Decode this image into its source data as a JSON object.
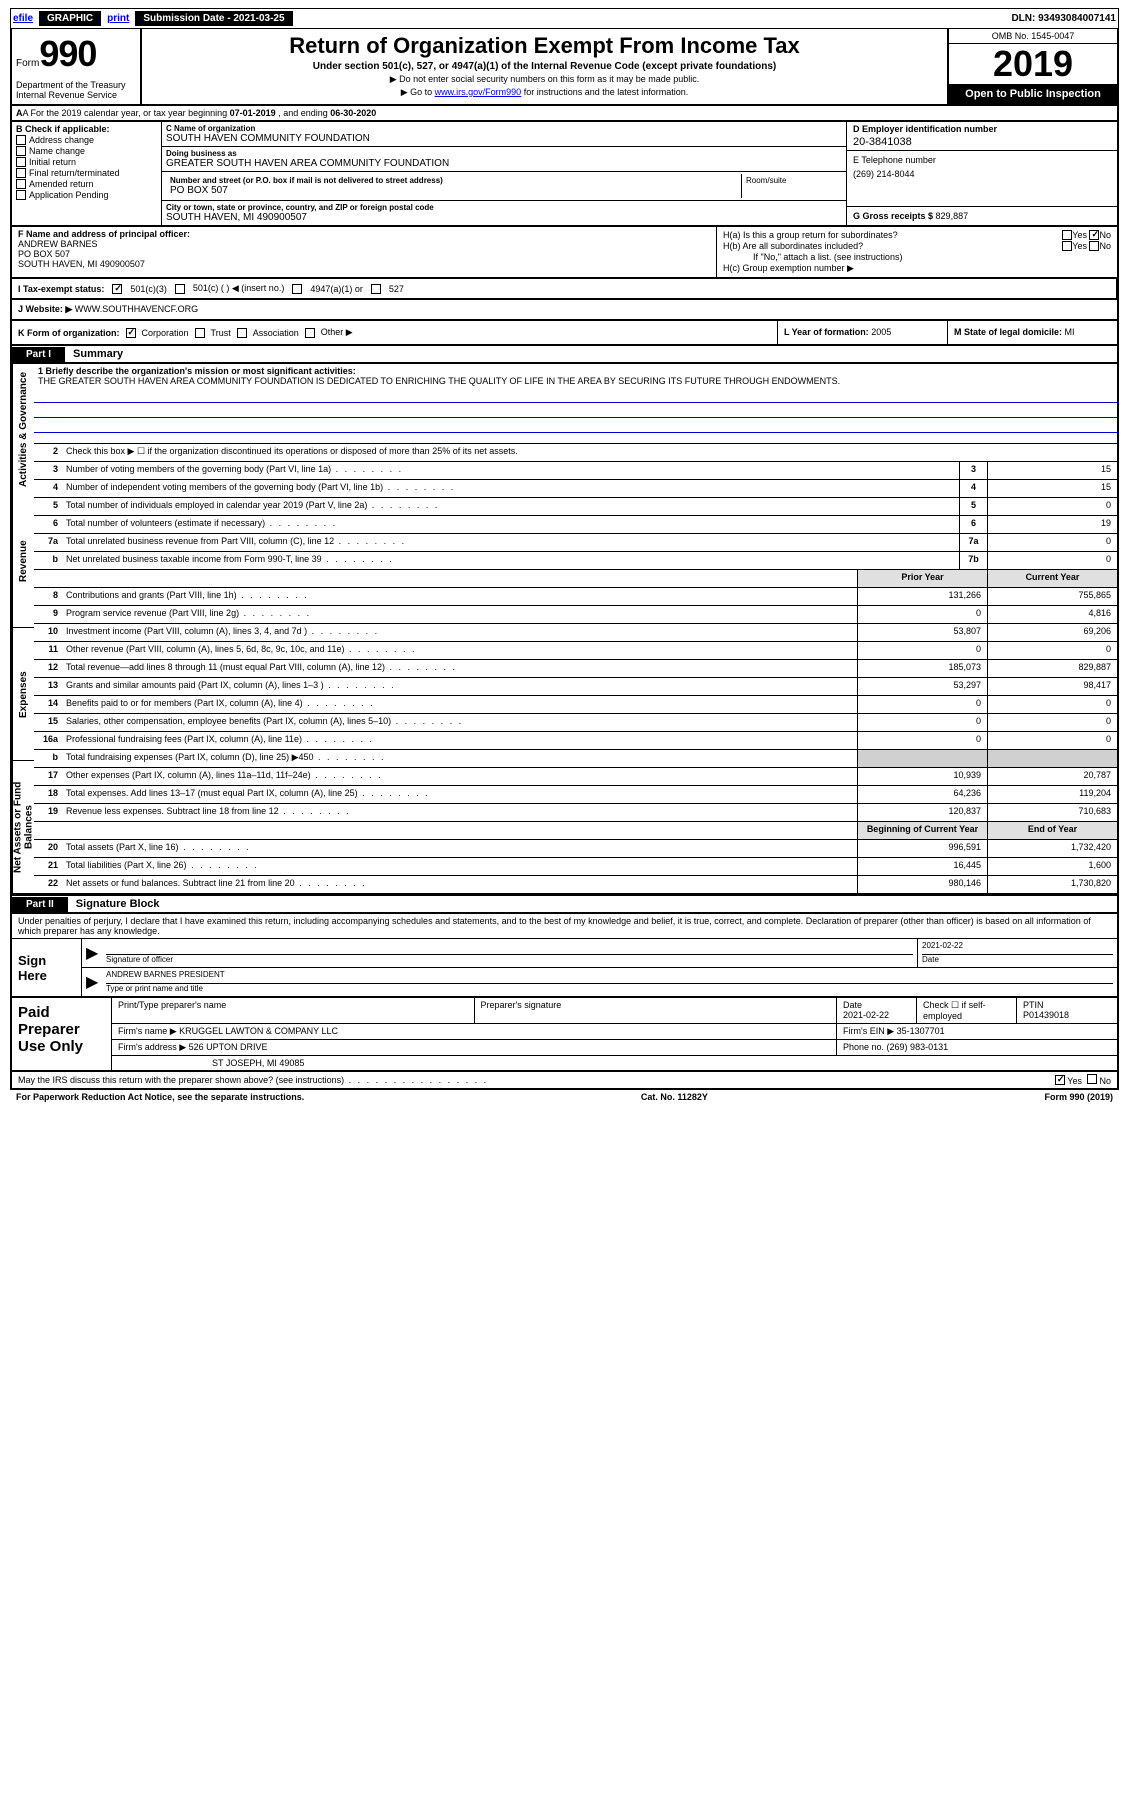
{
  "efile": {
    "efile": "efile",
    "graphic": "GRAPHIC",
    "print": "print",
    "sub_label": "Submission Date - ",
    "sub_date": "2021-03-25",
    "dln_label": "DLN: ",
    "dln": "93493084007141"
  },
  "header": {
    "form_word": "Form",
    "form_num": "990",
    "dept": "Department of the Treasury\nInternal Revenue Service",
    "title": "Return of Organization Exempt From Income Tax",
    "sub": "Under section 501(c), 527, or 4947(a)(1) of the Internal Revenue Code (except private foundations)",
    "arrow1": "▶ Do not enter social security numbers on this form as it may be made public.",
    "arrow2_pre": "▶ Go to ",
    "arrow2_link": "www.irs.gov/Form990",
    "arrow2_post": " for instructions and the latest information.",
    "omb": "OMB No. 1545-0047",
    "year": "2019",
    "open": "Open to Public Inspection"
  },
  "line_a": {
    "pre": "A For the 2019 calendar year, or tax year beginning ",
    "begin": "07-01-2019",
    "mid": " , and ending ",
    "end": "06-30-2020"
  },
  "box_b": {
    "title": "B Check if applicable:",
    "items": [
      "Address change",
      "Name change",
      "Initial return",
      "Final return/terminated",
      "Amended return",
      "Application Pending"
    ]
  },
  "box_c": {
    "name_lbl": "C Name of organization",
    "name": "SOUTH HAVEN COMMUNITY FOUNDATION",
    "dba_lbl": "Doing business as",
    "dba": "GREATER SOUTH HAVEN AREA COMMUNITY FOUNDATION",
    "addr_lbl": "Number and street (or P.O. box if mail is not delivered to street address)",
    "addr": "PO BOX 507",
    "room_lbl": "Room/suite",
    "room": "",
    "city_lbl": "City or town, state or province, country, and ZIP or foreign postal code",
    "city": "SOUTH HAVEN, MI  490900507"
  },
  "box_d": {
    "lbl": "D Employer identification number",
    "val": "20-3841038"
  },
  "box_e": {
    "lbl": "E Telephone number",
    "val": "(269) 214-8044"
  },
  "box_g": {
    "lbl": "G Gross receipts $ ",
    "val": "829,887"
  },
  "box_f": {
    "lbl": "F Name and address of principal officer:",
    "name": "ANDREW BARNES",
    "addr1": "PO BOX 507",
    "addr2": "SOUTH HAVEN, MI  490900507"
  },
  "box_h": {
    "ha": "H(a)  Is this a group return for subordinates?",
    "hb": "H(b)  Are all subordinates included?",
    "hb_note": "If \"No,\" attach a list. (see instructions)",
    "hc": "H(c)  Group exemption number ▶",
    "yes": "Yes",
    "no": "No"
  },
  "box_i": {
    "lbl": "I  Tax-exempt status:",
    "o1": "501(c)(3)",
    "o2": "501(c) (  ) ◀ (insert no.)",
    "o3": "4947(a)(1) or",
    "o4": "527"
  },
  "box_j": {
    "lbl": "J  Website: ▶ ",
    "val": "WWW.SOUTHHAVENCF.ORG"
  },
  "box_k": {
    "lbl": "K Form of organization:",
    "o1": "Corporation",
    "o2": "Trust",
    "o3": "Association",
    "o4": "Other ▶"
  },
  "box_l": {
    "lbl": "L Year of formation: ",
    "val": "2005"
  },
  "box_m": {
    "lbl": "M State of legal domicile: ",
    "val": "MI"
  },
  "part1": {
    "tab": "Part I",
    "title": "Summary"
  },
  "sidebar": {
    "s1": "Activities & Governance",
    "s2": "Revenue",
    "s3": "Expenses",
    "s4": "Net Assets or Fund Balances"
  },
  "summary": {
    "l1_lbl": "1  Briefly describe the organization's mission or most significant activities:",
    "l1_text": "THE GREATER SOUTH HAVEN AREA COMMUNITY FOUNDATION IS DEDICATED TO ENRICHING THE QUALITY OF LIFE IN THE AREA BY SECURING ITS FUTURE THROUGH ENDOWMENTS.",
    "l2": "Check this box ▶ ☐  if the organization discontinued its operations or disposed of more than 25% of its net assets.",
    "rows_ag": [
      {
        "n": "3",
        "d": "Number of voting members of the governing body (Part VI, line 1a)",
        "box": "3",
        "v": "15"
      },
      {
        "n": "4",
        "d": "Number of independent voting members of the governing body (Part VI, line 1b)",
        "box": "4",
        "v": "15"
      },
      {
        "n": "5",
        "d": "Total number of individuals employed in calendar year 2019 (Part V, line 2a)",
        "box": "5",
        "v": "0"
      },
      {
        "n": "6",
        "d": "Total number of volunteers (estimate if necessary)",
        "box": "6",
        "v": "19"
      },
      {
        "n": "7a",
        "d": "Total unrelated business revenue from Part VIII, column (C), line 12",
        "box": "7a",
        "v": "0"
      },
      {
        "n": "b",
        "d": "Net unrelated business taxable income from Form 990-T, line 39",
        "box": "7b",
        "v": "0"
      }
    ],
    "hdr_prior": "Prior Year",
    "hdr_curr": "Current Year",
    "rows_rev": [
      {
        "n": "8",
        "d": "Contributions and grants (Part VIII, line 1h)",
        "p": "131,266",
        "c": "755,865"
      },
      {
        "n": "9",
        "d": "Program service revenue (Part VIII, line 2g)",
        "p": "0",
        "c": "4,816"
      },
      {
        "n": "10",
        "d": "Investment income (Part VIII, column (A), lines 3, 4, and 7d )",
        "p": "53,807",
        "c": "69,206"
      },
      {
        "n": "11",
        "d": "Other revenue (Part VIII, column (A), lines 5, 6d, 8c, 9c, 10c, and 11e)",
        "p": "0",
        "c": "0"
      },
      {
        "n": "12",
        "d": "Total revenue—add lines 8 through 11 (must equal Part VIII, column (A), line 12)",
        "p": "185,073",
        "c": "829,887"
      }
    ],
    "rows_exp": [
      {
        "n": "13",
        "d": "Grants and similar amounts paid (Part IX, column (A), lines 1–3 )",
        "p": "53,297",
        "c": "98,417"
      },
      {
        "n": "14",
        "d": "Benefits paid to or for members (Part IX, column (A), line 4)",
        "p": "0",
        "c": "0"
      },
      {
        "n": "15",
        "d": "Salaries, other compensation, employee benefits (Part IX, column (A), lines 5–10)",
        "p": "0",
        "c": "0"
      },
      {
        "n": "16a",
        "d": "Professional fundraising fees (Part IX, column (A), line 11e)",
        "p": "0",
        "c": "0"
      },
      {
        "n": "b",
        "d": "Total fundraising expenses (Part IX, column (D), line 25) ▶450",
        "p": "shade",
        "c": "shade"
      },
      {
        "n": "17",
        "d": "Other expenses (Part IX, column (A), lines 11a–11d, 11f–24e)",
        "p": "10,939",
        "c": "20,787"
      },
      {
        "n": "18",
        "d": "Total expenses. Add lines 13–17 (must equal Part IX, column (A), line 25)",
        "p": "64,236",
        "c": "119,204"
      },
      {
        "n": "19",
        "d": "Revenue less expenses. Subtract line 18 from line 12",
        "p": "120,837",
        "c": "710,683"
      }
    ],
    "hdr_boy": "Beginning of Current Year",
    "hdr_eoy": "End of Year",
    "rows_na": [
      {
        "n": "20",
        "d": "Total assets (Part X, line 16)",
        "p": "996,591",
        "c": "1,732,420"
      },
      {
        "n": "21",
        "d": "Total liabilities (Part X, line 26)",
        "p": "16,445",
        "c": "1,600"
      },
      {
        "n": "22",
        "d": "Net assets or fund balances. Subtract line 21 from line 20",
        "p": "980,146",
        "c": "1,730,820"
      }
    ]
  },
  "part2": {
    "tab": "Part II",
    "title": "Signature Block"
  },
  "sig": {
    "text": "Under penalties of perjury, I declare that I have examined this return, including accompanying schedules and statements, and to the best of my knowledge and belief, it is true, correct, and complete. Declaration of preparer (other than officer) is based on all information of which preparer has any knowledge.",
    "sign_here": "Sign Here",
    "sig_officer": "Signature of officer",
    "date_lbl": "Date",
    "date_val": "2021-02-22",
    "name": "ANDREW BARNES PRESIDENT",
    "name_lbl": "Type or print name and title"
  },
  "prep": {
    "title": "Paid Preparer Use Only",
    "h1": "Print/Type preparer's name",
    "h2": "Preparer's signature",
    "h3": "Date",
    "h3v": "2021-02-22",
    "h4": "Check ☐ if self-employed",
    "h5": "PTIN",
    "h5v": "P01439018",
    "firm_lbl": "Firm's name    ▶ ",
    "firm": "KRUGGEL LAWTON & COMPANY LLC",
    "ein_lbl": "Firm's EIN ▶ ",
    "ein": "35-1307701",
    "addr_lbl": "Firm's address ▶ ",
    "addr1": "526 UPTON DRIVE",
    "addr2": "ST JOSEPH, MI  49085",
    "phone_lbl": "Phone no. ",
    "phone": "(269) 983-0131",
    "irs_q": "May the IRS discuss this return with the preparer shown above? (see instructions)",
    "yes": "Yes",
    "no": "No"
  },
  "footer": {
    "notice": "For Paperwork Reduction Act Notice, see the separate instructions.",
    "cat": "Cat. No. 11282Y",
    "form": "Form 990 (2019)"
  }
}
